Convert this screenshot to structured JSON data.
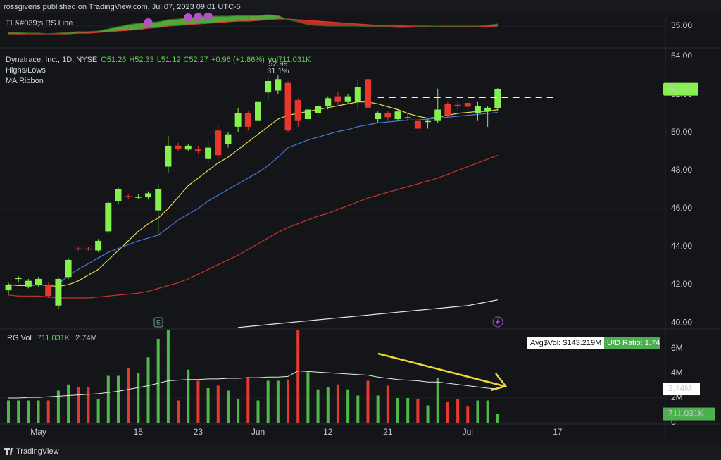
{
  "header": "rossgivens published on TradingView.com, Jul 07, 2023 09:01 UTC-5",
  "footer": "TradingView",
  "chart_data": {
    "type": "candlestick",
    "title": "Dynatrace, Inc., 1D, NYSE",
    "legend_values": [
      "O51.26",
      "H52.33",
      "L51.12",
      "C52.27",
      "+0.96 (+1.86%)",
      "Vol711.031K"
    ],
    "indicators": [
      "Highs/Lows",
      "MA Ribbon"
    ],
    "categories": [
      null,
      null,
      null,
      "May",
      null,
      null,
      null,
      null,
      null,
      null,
      null,
      null,
      null,
      "15",
      null,
      null,
      null,
      null,
      null,
      "23",
      null,
      null,
      null,
      null,
      null,
      "Jun",
      null,
      null,
      null,
      null,
      null,
      null,
      "12",
      null,
      null,
      null,
      null,
      null,
      "21",
      null,
      null,
      null,
      null,
      null,
      null,
      null,
      "Jul",
      null,
      null,
      null,
      null,
      null,
      null,
      null,
      null,
      "17",
      null,
      null,
      null,
      null,
      null,
      null,
      null,
      null,
      null,
      null,
      "A"
    ],
    "open": [
      41.7,
      42.3,
      41.9,
      42.0,
      42.0,
      40.9,
      42.4,
      43.9,
      43.9,
      43.8,
      44.8,
      46.4,
      46.65,
      46.6,
      46.6,
      45.9,
      48.2,
      49.3,
      49.1,
      49.1,
      48.6,
      50.1,
      49.4,
      50.3,
      51.0,
      50.6,
      52.1,
      52.2,
      52.6,
      51.7,
      50.7,
      51.0,
      51.4,
      51.9,
      51.6,
      51.6,
      52.8,
      50.7,
      51.0,
      50.7,
      50.75,
      50.6,
      50.55,
      50.6,
      51.5,
      51.45,
      51.55,
      51.0,
      51.1,
      51.26,
      null,
      null,
      null,
      null,
      null,
      null,
      null,
      null,
      null,
      null,
      null,
      null,
      null,
      null,
      null,
      null,
      null
    ],
    "high": [
      42.1,
      42.45,
      42.3,
      42.4,
      42.1,
      42.4,
      43.4,
      44.0,
      44.0,
      44.4,
      46.4,
      47.1,
      46.75,
      46.75,
      46.9,
      47.3,
      49.8,
      49.45,
      49.4,
      49.3,
      49.6,
      50.4,
      50.0,
      51.3,
      51.1,
      51.7,
      52.9,
      52.99,
      52.7,
      51.8,
      51.3,
      51.6,
      51.9,
      52.1,
      52.0,
      52.8,
      52.8,
      51.1,
      51.1,
      51.2,
      51.0,
      50.7,
      50.7,
      52.3,
      51.6,
      51.6,
      51.6,
      51.6,
      51.4,
      52.33,
      null,
      null,
      null,
      null,
      null,
      null,
      null,
      null,
      null,
      null,
      null,
      null,
      null,
      null,
      null,
      null,
      null
    ],
    "low": [
      41.5,
      42.1,
      41.8,
      41.9,
      41.3,
      40.7,
      42.3,
      43.8,
      43.8,
      43.7,
      44.7,
      46.2,
      46.5,
      46.5,
      46.5,
      44.6,
      47.9,
      49.0,
      49.0,
      48.9,
      48.4,
      48.6,
      49.2,
      50.0,
      50.1,
      50.5,
      51.7,
      52.0,
      50.0,
      50.3,
      50.6,
      50.8,
      51.2,
      51.4,
      51.5,
      51.2,
      51.1,
      50.5,
      50.6,
      50.6,
      50.6,
      50.1,
      50.2,
      50.5,
      50.8,
      51.2,
      51.2,
      50.6,
      50.3,
      51.12,
      null,
      null,
      null,
      null,
      null,
      null,
      null,
      null,
      null,
      null,
      null,
      null,
      null,
      null,
      null,
      null,
      null
    ],
    "close": [
      42.0,
      42.35,
      42.2,
      42.3,
      41.4,
      42.3,
      43.3,
      43.85,
      43.85,
      44.3,
      46.3,
      47.0,
      46.6,
      46.62,
      46.8,
      47.0,
      49.3,
      49.15,
      49.3,
      49.0,
      49.2,
      48.8,
      49.9,
      51.0,
      50.3,
      51.6,
      52.7,
      52.8,
      50.1,
      50.6,
      51.2,
      51.4,
      51.8,
      51.6,
      51.9,
      52.4,
      51.3,
      51.0,
      50.8,
      51.1,
      50.8,
      50.2,
      50.6,
      51.2,
      50.9,
      51.4,
      51.35,
      51.4,
      51.3,
      52.27,
      null,
      null,
      null,
      null,
      null,
      null,
      null,
      null,
      null,
      null,
      null,
      null,
      null,
      null,
      null,
      null,
      null
    ],
    "up_color": "#86f04f",
    "down_color": "#e8372d",
    "ylim": [
      39.67,
      54.44
    ],
    "yticks": [
      {
        "value": 54,
        "label": "54.00"
      },
      {
        "value": 52,
        "label": "52.00"
      },
      {
        "value": 50,
        "label": "50.00"
      },
      {
        "value": 48,
        "label": "48.00"
      },
      {
        "value": 46,
        "label": "46.00"
      },
      {
        "value": 44,
        "label": "44.00"
      },
      {
        "value": 42,
        "label": "42.00"
      },
      {
        "value": 40,
        "label": "40.00"
      }
    ],
    "grid": true,
    "ma_series": [
      {
        "color": "#e3dc4a",
        "values": [
          42.0,
          41.95,
          41.95,
          42.0,
          41.95,
          41.9,
          42.0,
          42.2,
          42.5,
          42.8,
          43.3,
          43.8,
          44.3,
          44.8,
          45.2,
          45.5,
          46.0,
          46.6,
          47.2,
          47.6,
          48.0,
          48.4,
          48.7,
          49.1,
          49.5,
          49.9,
          50.3,
          50.7,
          50.9,
          51.0,
          51.1,
          51.2,
          51.3,
          51.4,
          51.5,
          51.6,
          51.6,
          51.5,
          51.35,
          51.2,
          51.0,
          50.85,
          50.75,
          50.8,
          50.9,
          51.0,
          51.05,
          51.1,
          51.1,
          51.2,
          null,
          null,
          null,
          null,
          null,
          null,
          null,
          null,
          null,
          null,
          null,
          null,
          null,
          null,
          null,
          null,
          null
        ]
      },
      {
        "color": "#4a78d6",
        "values": [
          null,
          null,
          null,
          null,
          null,
          42.0,
          42.5,
          42.8,
          43.1,
          43.4,
          43.7,
          43.9,
          44.1,
          44.3,
          44.45,
          44.6,
          45.0,
          45.4,
          45.7,
          46.0,
          46.4,
          46.7,
          47.0,
          47.3,
          47.6,
          47.9,
          48.25,
          48.7,
          49.2,
          49.4,
          49.6,
          49.75,
          49.9,
          50.05,
          50.15,
          50.3,
          50.4,
          50.5,
          50.55,
          50.6,
          50.65,
          50.65,
          50.7,
          50.75,
          50.8,
          50.85,
          50.9,
          50.95,
          51.0,
          51.05,
          null,
          null,
          null,
          null,
          null,
          null,
          null,
          null,
          null,
          null,
          null,
          null,
          null,
          null,
          null,
          null,
          null
        ]
      },
      {
        "color": "#c9342b",
        "values": [
          41.45,
          41.4,
          41.4,
          41.4,
          41.35,
          41.3,
          41.3,
          41.3,
          41.3,
          41.35,
          41.4,
          41.45,
          41.5,
          41.55,
          41.65,
          41.8,
          41.95,
          42.1,
          42.3,
          42.55,
          42.8,
          43.05,
          43.3,
          43.55,
          43.85,
          44.15,
          44.45,
          44.75,
          45.0,
          45.2,
          45.4,
          45.6,
          45.75,
          45.95,
          46.15,
          46.35,
          46.55,
          46.7,
          46.85,
          47.0,
          47.15,
          47.3,
          47.45,
          47.6,
          47.8,
          48.0,
          48.2,
          48.4,
          48.6,
          48.8,
          null,
          null,
          null,
          null,
          null,
          null,
          null,
          null,
          null,
          null,
          null,
          null,
          null,
          null,
          null,
          null,
          null
        ]
      },
      {
        "color": "#e6e6e6",
        "values": [
          null,
          null,
          null,
          null,
          null,
          null,
          null,
          null,
          null,
          null,
          null,
          null,
          null,
          null,
          null,
          null,
          null,
          null,
          null,
          null,
          null,
          null,
          null,
          39.75,
          39.8,
          39.85,
          39.9,
          39.95,
          40.0,
          40.05,
          40.1,
          40.15,
          40.2,
          40.25,
          40.3,
          40.35,
          40.4,
          40.45,
          40.5,
          40.55,
          40.6,
          40.65,
          40.7,
          40.75,
          40.8,
          40.85,
          40.9,
          41.0,
          41.1,
          41.2,
          null,
          null,
          null,
          null,
          null,
          null,
          null,
          null,
          null,
          null,
          null,
          null,
          null,
          null,
          null,
          null,
          null
        ]
      }
    ],
    "high_marker": {
      "values": [
        52.99,
        31.1
      ],
      "value_labels": [
        "52.99",
        "31.1%"
      ]
    },
    "hline": 51.85,
    "earnings_label": "E",
    "volume": {
      "title": "RG Vol",
      "values": [
        1.8,
        1.8,
        1.8,
        1.8,
        1.8,
        2.6,
        3.1,
        2.9,
        2.9,
        1.9,
        3.8,
        3.8,
        4.4,
        4.0,
        5.3,
        6.8,
        7.5,
        1.8,
        4.3,
        3.4,
        2.8,
        3.0,
        2.6,
        1.9,
        3.7,
        1.8,
        3.4,
        3.4,
        3.5,
        7.5,
        4.1,
        2.7,
        2.9,
        3.1,
        2.7,
        2.2,
        3.4,
        2.2,
        3.0,
        2.0,
        2.0,
        1.9,
        1.4,
        3.6,
        1.7,
        1.9,
        1.3,
        1.8,
        1.8,
        0.711031,
        null,
        null,
        null,
        null,
        null,
        null,
        null,
        null,
        null,
        null,
        null,
        null,
        null,
        null,
        null,
        null,
        null
      ],
      "ma_values": [
        2.0,
        2.0,
        2.05,
        2.05,
        2.1,
        2.15,
        2.2,
        2.25,
        2.3,
        2.35,
        2.45,
        2.55,
        2.7,
        2.85,
        3.0,
        3.2,
        3.4,
        3.45,
        3.5,
        3.5,
        3.55,
        3.55,
        3.6,
        3.6,
        3.65,
        3.65,
        3.7,
        3.7,
        3.75,
        4.2,
        4.15,
        4.1,
        4.05,
        4.0,
        3.95,
        3.9,
        3.85,
        3.7,
        3.6,
        3.5,
        3.45,
        3.4,
        3.3,
        3.3,
        3.2,
        3.1,
        3.0,
        2.9,
        2.8,
        2.74,
        null,
        null,
        null,
        null,
        null,
        null,
        null,
        null,
        null,
        null,
        null,
        null,
        null,
        null,
        null,
        null,
        null
      ],
      "last_label": "711.031K",
      "ma_label": "2.74M",
      "up_color": "#4fb948",
      "down_color": "#e53a2f",
      "ma_color": "#e8e8e8",
      "avg_dollar_vol": "Avg$Vol: $143.219M",
      "ud_ratio": "U/D Ratio: 1.74",
      "ylim": [
        0,
        7.6
      ],
      "yticks": [
        {
          "value": 6,
          "label": "6M"
        },
        {
          "value": 4,
          "label": "4M"
        },
        {
          "value": 2,
          "label": "2M"
        },
        0
      ]
    },
    "rs": {
      "title": "TL&#039;s RS Line",
      "values": [
        34.55,
        34.55,
        34.5,
        34.5,
        34.45,
        34.5,
        34.55,
        34.6,
        34.6,
        34.65,
        34.8,
        34.95,
        35.1,
        35.2,
        35.25,
        35.3,
        35.45,
        35.5,
        35.6,
        35.65,
        35.7,
        35.7,
        35.7,
        35.75,
        35.75,
        35.75,
        35.8,
        35.75,
        35.45,
        35.3,
        35.1,
        35.05,
        35.0,
        35.0,
        35.0,
        35.0,
        34.95,
        34.95,
        34.95,
        34.9,
        34.9,
        34.95,
        34.95,
        35.0,
        35.0,
        35.0,
        35.0,
        35.0,
        35.05,
        35.15,
        null,
        null,
        null,
        null,
        null,
        null,
        null,
        null,
        null,
        null,
        null,
        null,
        null,
        null,
        null,
        null,
        null
      ],
      "ma_values": [
        34.45,
        34.45,
        34.45,
        34.45,
        34.45,
        34.45,
        34.45,
        34.5,
        34.5,
        34.55,
        34.6,
        34.65,
        34.7,
        34.75,
        34.85,
        34.9,
        35.0,
        35.05,
        35.1,
        35.15,
        35.2,
        35.25,
        35.3,
        35.35,
        35.35,
        35.4,
        35.45,
        35.5,
        35.5,
        35.45,
        35.4,
        35.35,
        35.3,
        35.25,
        35.2,
        35.15,
        35.1,
        35.05,
        35.05,
        35.05,
        35.0,
        35.0,
        35.0,
        34.98,
        34.98,
        34.98,
        34.98,
        34.98,
        34.98,
        35.0,
        null,
        null,
        null,
        null,
        null,
        null,
        null,
        null,
        null,
        null,
        null,
        null,
        null,
        null,
        null,
        null,
        null
      ],
      "new_highs": [
        null,
        null,
        null,
        null,
        null,
        null,
        null,
        null,
        null,
        null,
        null,
        null,
        null,
        null,
        35.25,
        null,
        null,
        null,
        35.6,
        35.65,
        35.7,
        null,
        null,
        null,
        null,
        null,
        null,
        null,
        null,
        null,
        null,
        null,
        null,
        null,
        null,
        null,
        null,
        null,
        null,
        null,
        null,
        null,
        null,
        null,
        null,
        null,
        null,
        null,
        null,
        null,
        null,
        null,
        null,
        null,
        null,
        null,
        null,
        null,
        null,
        null,
        null,
        null,
        null,
        null,
        null,
        null,
        null
      ],
      "up_color": "#5fbf3f",
      "down_color": "#d8362c",
      "line_color": "#2e6b22",
      "ma_color": "#d8362c",
      "high_color": "#b64fc8",
      "ylim": [
        33.45,
        35.95
      ],
      "yticks": [
        {
          "value": 35,
          "label": "35.00"
        }
      ]
    }
  }
}
